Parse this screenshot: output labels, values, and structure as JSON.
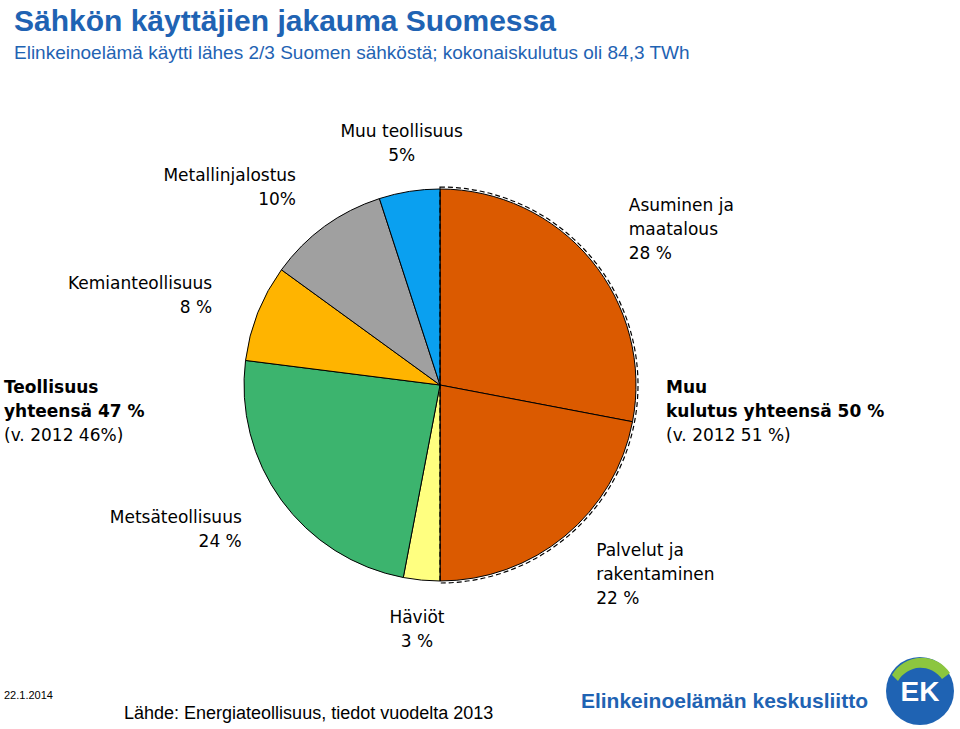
{
  "chart_data": {
    "type": "pie",
    "title": "Sähkön käyttäjien jakauma Suomessa",
    "subtitle": "Elinkeinoelämä käytti lähes 2/3 Suomen sähköstä; kokonaiskulutus oli 84,3 TWh",
    "categories": [
      "Asuminen ja maatalous",
      "Palvelut ja rakentaminen",
      "Häviöt",
      "Metsäteollisuus",
      "Kemianteollisuus",
      "Metallinjalostus",
      "Muu teollisuus"
    ],
    "values": [
      28,
      22,
      3,
      24,
      8,
      10,
      5
    ],
    "value_labels": [
      "28 %",
      "22 %",
      "3 %",
      "24 %",
      "8 %",
      "10%",
      "5%"
    ],
    "colors": [
      "#db5a00",
      "#db5a00",
      "#ffff80",
      "#3cb46e",
      "#ffb400",
      "#a0a0a0",
      "#0aa0f0"
    ],
    "data_labels": true,
    "annotations": [
      {
        "text": "Teollisuus yhteensä 47 %",
        "subtext": "(v. 2012 46%)"
      },
      {
        "text": "Muu kulutus yhteensä 50 %",
        "subtext": "(v. 2012 51 %)"
      }
    ],
    "caption": "Lähde: Energiateollisuus, tiedot vuodelta 2013",
    "date": "22.1.2014",
    "logo": "Elinkeinoelämän keskusliitto",
    "logo_mark": "EK"
  }
}
